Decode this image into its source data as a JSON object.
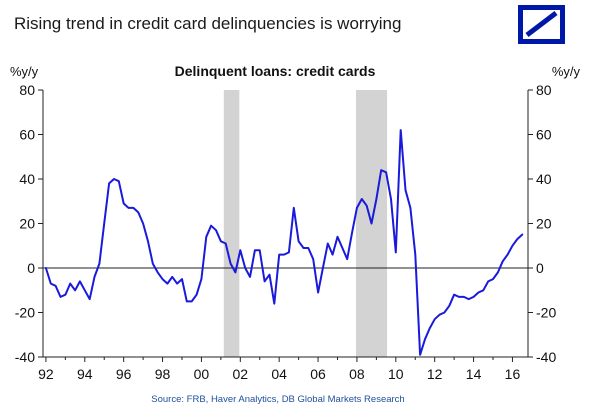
{
  "headline": "Rising trend in credit card delinquencies is worrying",
  "logo": {
    "name": "Deutsche Bank logo",
    "color": "#0018a8"
  },
  "source": "Source: FRB, Haver Analytics, DB Global Markets Research",
  "chart_data": {
    "type": "line",
    "title": "Delinquent loans: credit cards",
    "ylabel_left": "%y/y",
    "ylabel_right": "%y/y",
    "ylim": [
      -40,
      80
    ],
    "yticks": [
      -40,
      -20,
      0,
      20,
      40,
      60,
      80
    ],
    "xlim": [
      1991.85,
      2016.8
    ],
    "xticks": [
      1992,
      1994,
      1996,
      1998,
      2000,
      2002,
      2004,
      2006,
      2008,
      2010,
      2012,
      2014,
      2016
    ],
    "xtick_labels": [
      "92",
      "94",
      "96",
      "98",
      "00",
      "02",
      "04",
      "06",
      "08",
      "10",
      "12",
      "14",
      "16"
    ],
    "grid": false,
    "line_color": "#1a1adc",
    "recession_color": "#d3d3d3",
    "recessions": [
      [
        2001.15,
        2001.95
      ],
      [
        2007.95,
        2009.55
      ]
    ],
    "series": [
      {
        "x": [
          1992.0,
          1992.25,
          1992.5,
          1992.75,
          1993.0,
          1993.25,
          1993.5,
          1993.75,
          1994.0,
          1994.25,
          1994.5,
          1994.75,
          1995.0,
          1995.25,
          1995.5,
          1995.75,
          1996.0,
          1996.25,
          1996.5,
          1996.75,
          1997.0,
          1997.25,
          1997.5,
          1997.75,
          1998.0,
          1998.25,
          1998.5,
          1998.75,
          1999.0,
          1999.25,
          1999.5,
          1999.75,
          2000.0,
          2000.25,
          2000.5,
          2000.75,
          2001.0,
          2001.25,
          2001.5,
          2001.75,
          2002.0,
          2002.25,
          2002.5,
          2002.75,
          2003.0,
          2003.25,
          2003.5,
          2003.75,
          2004.0,
          2004.25,
          2004.5,
          2004.75,
          2005.0,
          2005.25,
          2005.5,
          2005.75,
          2006.0,
          2006.25,
          2006.5,
          2006.75,
          2007.0,
          2007.25,
          2007.5,
          2007.75,
          2008.0,
          2008.25,
          2008.5,
          2008.75,
          2009.0,
          2009.25,
          2009.5,
          2009.75,
          2010.0,
          2010.25,
          2010.5,
          2010.75,
          2011.0,
          2011.25,
          2011.5,
          2011.75,
          2012.0,
          2012.25,
          2012.5,
          2012.75,
          2013.0,
          2013.25,
          2013.5,
          2013.75,
          2014.0,
          2014.25,
          2014.5,
          2014.75,
          2015.0,
          2015.25,
          2015.5,
          2015.75,
          2016.0,
          2016.25,
          2016.5
        ],
        "y": [
          0,
          -7,
          -8,
          -13,
          -12,
          -7,
          -10,
          -6,
          -10,
          -14,
          -4,
          2,
          20,
          38,
          40,
          39,
          29,
          27,
          27,
          25,
          20,
          12,
          2,
          -2,
          -5,
          -7,
          -4,
          -7,
          -5,
          -15,
          -15,
          -12,
          -5,
          14,
          19,
          17,
          12,
          11,
          2,
          -2,
          8,
          0,
          -4,
          8,
          8,
          -6,
          -3,
          -16,
          6,
          6,
          7,
          27,
          12,
          9,
          9,
          4,
          -11,
          0,
          11,
          6,
          14,
          9,
          4,
          16,
          27,
          31,
          28,
          20,
          31,
          44,
          43,
          31,
          7,
          62,
          35,
          27,
          6,
          -39,
          -32,
          -27,
          -23,
          -21,
          -20,
          -17,
          -12,
          -13,
          -13,
          -14,
          -13,
          -11,
          -10,
          -6,
          -5,
          -2,
          3,
          6,
          10,
          13,
          15
        ]
      }
    ]
  }
}
